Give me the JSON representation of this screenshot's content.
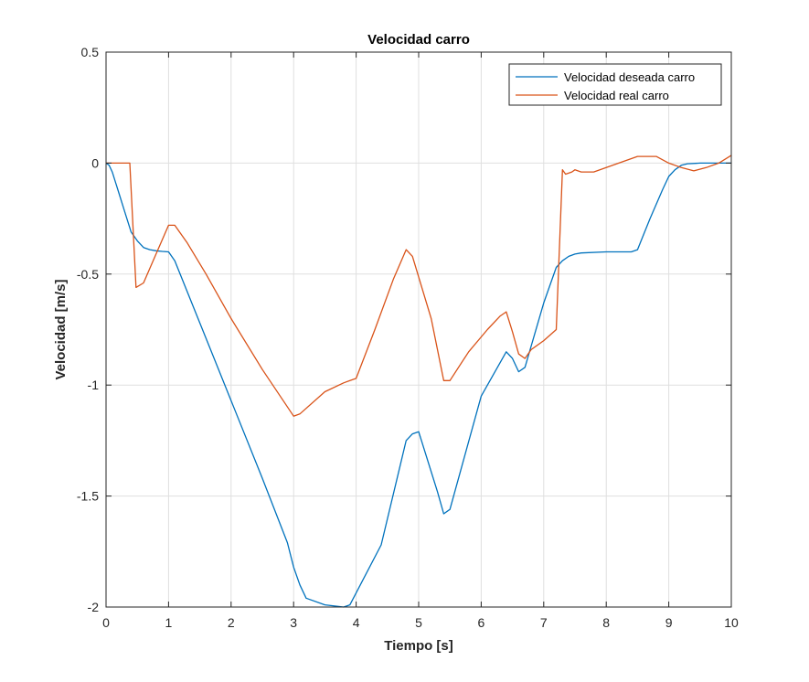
{
  "colors": {
    "desired": "#0072BD",
    "real": "#D95319",
    "grid": "#DFDFDF",
    "axis": "#262626",
    "background": "#FFFFFF"
  },
  "chart_data": {
    "type": "line",
    "title": "Velocidad carro",
    "xlabel": "Tiempo [s]",
    "ylabel": "Velocidad [m/s]",
    "xlim": [
      0,
      10
    ],
    "ylim": [
      -2,
      0.5
    ],
    "xticks": [
      0,
      1,
      2,
      3,
      4,
      5,
      6,
      7,
      8,
      9,
      10
    ],
    "xtick_labels": [
      "0",
      "1",
      "2",
      "3",
      "4",
      "5",
      "6",
      "7",
      "8",
      "9",
      "10"
    ],
    "yticks": [
      0.5,
      0,
      -0.5,
      -1,
      -1.5,
      -2
    ],
    "ytick_labels": [
      "0.5",
      "0",
      "-0.5",
      "-1",
      "-1.5",
      "-2"
    ],
    "grid": true,
    "legend_position": "top-right",
    "series": [
      {
        "name": "Velocidad deseada carro",
        "color_key": "desired",
        "x": [
          0,
          0.05,
          0.1,
          0.2,
          0.3,
          0.4,
          0.5,
          0.6,
          0.7,
          0.8,
          0.9,
          1.0,
          1.1,
          1.5,
          2.0,
          2.5,
          2.9,
          3.0,
          3.1,
          3.2,
          3.5,
          3.8,
          3.9,
          4.4,
          4.8,
          4.9,
          5.0,
          5.3,
          5.4,
          5.5,
          6.0,
          6.4,
          6.5,
          6.6,
          6.7,
          7.0,
          7.2,
          7.3,
          7.4,
          7.5,
          7.6,
          8.0,
          8.4,
          8.5,
          8.7,
          8.9,
          9.0,
          9.1,
          9.2,
          9.3,
          9.5,
          10.0
        ],
        "y": [
          0,
          -0.01,
          -0.04,
          -0.13,
          -0.22,
          -0.31,
          -0.35,
          -0.38,
          -0.39,
          -0.395,
          -0.398,
          -0.4,
          -0.44,
          -0.72,
          -1.07,
          -1.42,
          -1.71,
          -1.82,
          -1.9,
          -1.96,
          -1.99,
          -2.0,
          -1.99,
          -1.72,
          -1.25,
          -1.22,
          -1.21,
          -1.48,
          -1.58,
          -1.56,
          -1.05,
          -0.85,
          -0.88,
          -0.94,
          -0.92,
          -0.63,
          -0.47,
          -0.44,
          -0.42,
          -0.41,
          -0.405,
          -0.4,
          -0.4,
          -0.39,
          -0.25,
          -0.12,
          -0.06,
          -0.03,
          -0.01,
          -0.003,
          0,
          0
        ]
      },
      {
        "name": "Velocidad real carro",
        "color_key": "real",
        "x": [
          0,
          0.1,
          0.2,
          0.3,
          0.38,
          0.48,
          0.6,
          0.8,
          1.0,
          1.1,
          1.3,
          1.6,
          2.0,
          2.5,
          3.0,
          3.1,
          3.5,
          3.8,
          4.0,
          4.3,
          4.6,
          4.8,
          4.9,
          5.2,
          5.4,
          5.5,
          5.8,
          6.1,
          6.3,
          6.4,
          6.5,
          6.6,
          6.7,
          6.8,
          7.0,
          7.2,
          7.3,
          7.35,
          7.45,
          7.5,
          7.6,
          7.8,
          8.0,
          8.2,
          8.5,
          8.8,
          9.0,
          9.2,
          9.4,
          9.6,
          9.8,
          10.0
        ],
        "y": [
          0,
          0,
          0,
          0,
          0,
          -0.56,
          -0.54,
          -0.41,
          -0.28,
          -0.28,
          -0.36,
          -0.5,
          -0.7,
          -0.93,
          -1.14,
          -1.13,
          -1.03,
          -0.99,
          -0.97,
          -0.75,
          -0.52,
          -0.39,
          -0.42,
          -0.7,
          -0.98,
          -0.98,
          -0.85,
          -0.75,
          -0.69,
          -0.67,
          -0.76,
          -0.86,
          -0.88,
          -0.84,
          -0.8,
          -0.75,
          -0.03,
          -0.05,
          -0.04,
          -0.03,
          -0.04,
          -0.04,
          -0.02,
          0.0,
          0.03,
          0.03,
          0.0,
          -0.02,
          -0.035,
          -0.02,
          0.0,
          0.035
        ]
      }
    ]
  }
}
